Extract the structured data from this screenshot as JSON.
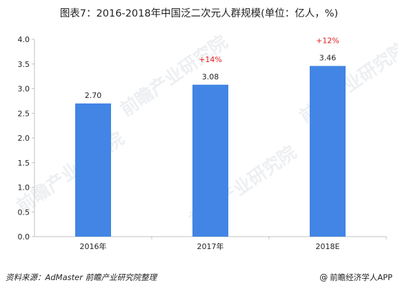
{
  "title": "图表7：2016-2018年中国泛二次元人群规模(单位：亿人，%)",
  "source": "资料来源：AdMaster 前瞻产业研究院整理",
  "brand": "前瞻经济学人APP",
  "brand_icon": "at-icon",
  "watermark_text": "前瞻产业研究院",
  "colors": {
    "bar": "#4285e4",
    "growth": "#e31b1b",
    "axis": "#bfbfbf"
  },
  "chart_data": {
    "type": "bar",
    "categories": [
      "2016年",
      "2017年",
      "2018E"
    ],
    "values": [
      2.7,
      3.08,
      3.46
    ],
    "value_labels": [
      "2.70",
      "3.08",
      "3.46"
    ],
    "growth_labels": [
      "",
      "+14%",
      "+12%"
    ],
    "y_ticks": [
      "0.0",
      "0.5",
      "1.0",
      "1.5",
      "2.0",
      "2.5",
      "3.0",
      "3.5",
      "4.0"
    ],
    "ylim": [
      0,
      4.0
    ],
    "grid": false,
    "legend": "none"
  }
}
